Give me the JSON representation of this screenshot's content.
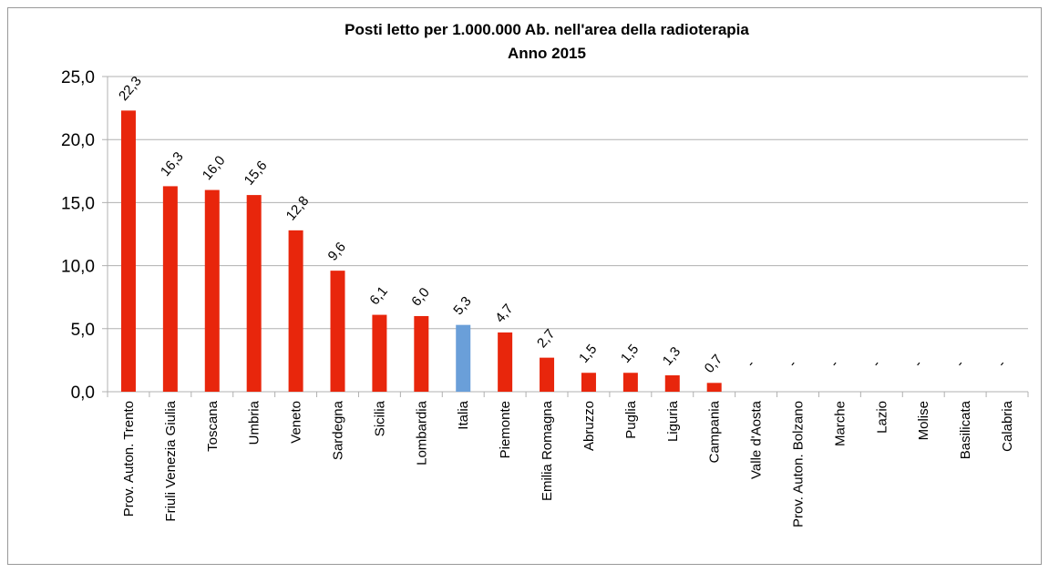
{
  "chart_data": {
    "type": "bar",
    "title": "Posti letto per 1.000.000 Ab. nell'area della radioterapia",
    "subtitle": "Anno 2015",
    "categories": [
      "Prov. Auton. Trento",
      "Friuli Venezia Giulia",
      "Toscana",
      "Umbria",
      "Veneto",
      "Sardegna",
      "Sicilia",
      "Lombardia",
      "Italia",
      "Piemonte",
      "Emilia Romagna",
      "Abruzzo",
      "Puglia",
      "Liguria",
      "Campania",
      "Valle d'Aosta",
      "Prov. Auton. Bolzano",
      "Marche",
      "Lazio",
      "Molise",
      "Basilicata",
      "Calabria"
    ],
    "values": [
      22.3,
      16.3,
      16.0,
      15.6,
      12.8,
      9.6,
      6.1,
      6.0,
      5.3,
      4.7,
      2.7,
      1.5,
      1.5,
      1.3,
      0.7,
      null,
      null,
      null,
      null,
      null,
      null,
      null
    ],
    "value_labels": [
      "22,3",
      "16,3",
      "16,0",
      "15,6",
      "12,8",
      "9,6",
      "6,1",
      "6,0",
      "5,3",
      "4,7",
      "2,7",
      "1,5",
      "1,5",
      "1,3",
      "0,7",
      "-",
      "-",
      "-",
      "-",
      "-",
      "-",
      "-"
    ],
    "colors": [
      "#e8260c",
      "#e8260c",
      "#e8260c",
      "#e8260c",
      "#e8260c",
      "#e8260c",
      "#e8260c",
      "#e8260c",
      "#6a9fd9",
      "#e8260c",
      "#e8260c",
      "#e8260c",
      "#e8260c",
      "#e8260c",
      "#e8260c",
      "#e8260c",
      "#e8260c",
      "#e8260c",
      "#e8260c",
      "#e8260c",
      "#e8260c",
      "#e8260c"
    ],
    "ylim": [
      0,
      25
    ],
    "yticks": [
      {
        "value": 0,
        "label": "0,0"
      },
      {
        "value": 5,
        "label": "5,0"
      },
      {
        "value": 10,
        "label": "10,0"
      },
      {
        "value": 15,
        "label": "15,0"
      },
      {
        "value": 20,
        "label": "20,0"
      },
      {
        "value": 25,
        "label": "25,0"
      }
    ],
    "grid": true
  }
}
